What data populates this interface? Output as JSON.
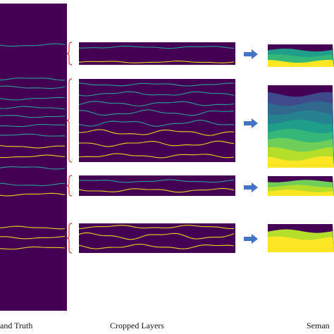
{
  "captions": {
    "ground_truth": "and Truth",
    "cropped_layers": "Cropped Layers",
    "semantic": "Seman"
  },
  "colors": {
    "background": "#440154",
    "line_yellow": "#e8d21e",
    "line_teal": "#2a9d9a",
    "bracket": "#e03a2a",
    "arrow": "#4472c4",
    "viridis": [
      "#440154",
      "#3e4a89",
      "#31688e",
      "#26828e",
      "#1f9e89",
      "#35b779",
      "#6ece58",
      "#b5de2b",
      "#fde725"
    ]
  },
  "icons": {
    "bracket": "curly-brace-icon",
    "arrow": "right-arrow-icon"
  }
}
